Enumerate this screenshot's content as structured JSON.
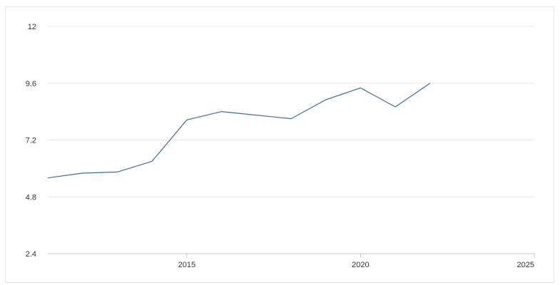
{
  "chart_data": {
    "type": "line",
    "title": "",
    "xlabel": "",
    "ylabel": "",
    "xlim": [
      2011,
      2025
    ],
    "ylim": [
      2.4,
      12
    ],
    "y_ticks": [
      2.4,
      4.8,
      7.2,
      9.6,
      12
    ],
    "x_ticks": [
      2015,
      2020,
      2025
    ],
    "y_tick_labels": [
      "2.4",
      "4.8",
      "7.2",
      "9.6",
      "12"
    ],
    "x_tick_labels": [
      "2015",
      "2020",
      "2025"
    ],
    "grid": true,
    "series": [
      {
        "color": "#3a6f9a",
        "x": [
          2011,
          2012,
          2013,
          2014,
          2015,
          2016,
          2017,
          2018,
          2019,
          2020,
          2021,
          2022
        ],
        "values": [
          5.6,
          5.8,
          5.85,
          6.3,
          8.05,
          8.4,
          8.25,
          8.1,
          8.9,
          9.4,
          8.6,
          9.6
        ]
      }
    ]
  }
}
